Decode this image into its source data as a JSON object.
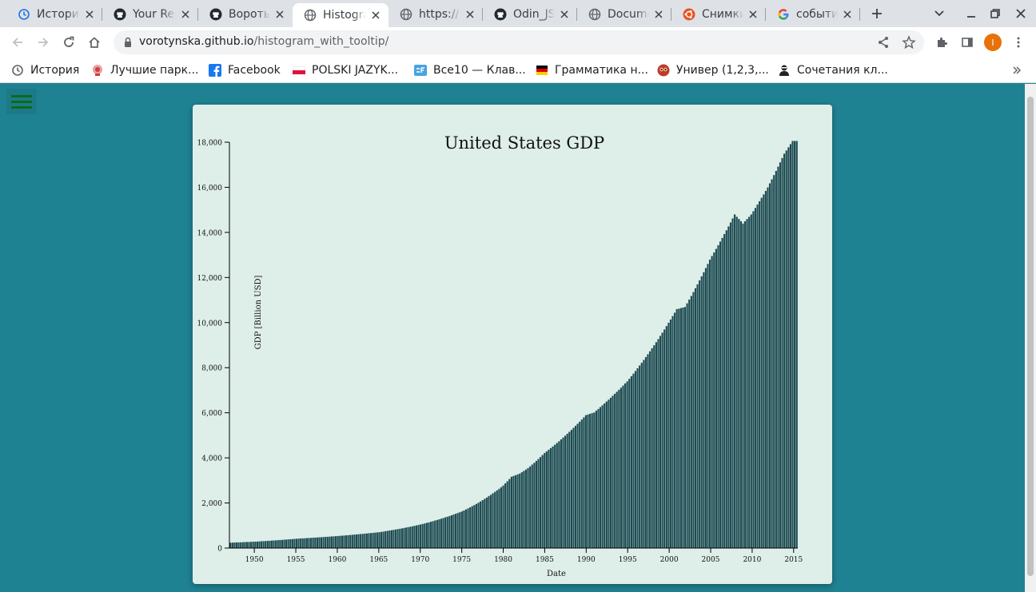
{
  "browser": {
    "tabs": [
      {
        "title": "История",
        "icon": "history-icon",
        "active": false
      },
      {
        "title": "Your Repositories",
        "icon": "github-icon",
        "active": false
      },
      {
        "title": "Воротынська",
        "icon": "github-icon",
        "active": false
      },
      {
        "title": "Histogram",
        "icon": "globe-icon",
        "active": true
      },
      {
        "title": "https://",
        "icon": "globe-icon",
        "active": false
      },
      {
        "title": "Odin_JS",
        "icon": "github-icon",
        "active": false
      },
      {
        "title": "Document",
        "icon": "globe-icon",
        "active": false
      },
      {
        "title": "Снимки",
        "icon": "ubuntu-icon",
        "active": false
      },
      {
        "title": "события",
        "icon": "google-icon",
        "active": false
      }
    ],
    "url": {
      "host": "vorotynska.github.io",
      "path": "/histogram_with_tooltip/"
    },
    "profile_initial": "I",
    "bookmarks": [
      {
        "label": "История",
        "icon": "history-icon"
      },
      {
        "label": "Лучшие парк...",
        "icon": "park-icon"
      },
      {
        "label": "Facebook",
        "icon": "facebook-icon"
      },
      {
        "label": "POLSKI JAZYK...",
        "icon": "poland-flag-icon"
      },
      {
        "label": "Все10 — Клав...",
        "icon": "keyboard-icon"
      },
      {
        "label": "Грамматика н...",
        "icon": "germany-flag-icon"
      },
      {
        "label": "Универ (1,2,3,...",
        "icon": "owl-icon"
      },
      {
        "label": "Сочетания кл...",
        "icon": "person-icon"
      }
    ],
    "colors": {
      "tabbar": "#dee1e6",
      "toolbar": "#ffffff",
      "profile": "#e8710a"
    }
  },
  "page": {
    "background": "#1f8292",
    "card_background": "#deeee8",
    "menu_color": "#0b6a1c"
  },
  "chart_data": {
    "type": "bar",
    "title": "United States GDP",
    "xlabel": "Date",
    "ylabel": "GDP [Billion USD]",
    "ylim": [
      0,
      18000
    ],
    "yticks": [
      0,
      2000,
      4000,
      6000,
      8000,
      10000,
      12000,
      14000,
      16000,
      18000
    ],
    "ytick_labels": [
      "0",
      "2,000",
      "4,000",
      "6,000",
      "8,000",
      "10,000",
      "12,000",
      "14,000",
      "16,000",
      "18,000"
    ],
    "xlim": [
      "1947-01-01",
      "2015-07-01"
    ],
    "xticks": [
      "1950",
      "1955",
      "1960",
      "1965",
      "1970",
      "1975",
      "1980",
      "1985",
      "1990",
      "1995",
      "2000",
      "2005",
      "2010",
      "2015"
    ],
    "grid": false,
    "bar_color": "#1d4b52",
    "bar_edge_color": "#deeee8",
    "frequency": "quarterly",
    "annual_values": [
      {
        "x": "1947",
        "y": 245
      },
      {
        "x": "1950",
        "y": 290
      },
      {
        "x": "1955",
        "y": 420
      },
      {
        "x": "1960",
        "y": 540
      },
      {
        "x": "1965",
        "y": 710
      },
      {
        "x": "1970",
        "y": 1050
      },
      {
        "x": "1975",
        "y": 1630
      },
      {
        "x": "1980",
        "y": 2780
      },
      {
        "x": "1981",
        "y": 3170
      },
      {
        "x": "1982",
        "y": 3310
      },
      {
        "x": "1983",
        "y": 3550
      },
      {
        "x": "1985",
        "y": 4220
      },
      {
        "x": "1990",
        "y": 5900
      },
      {
        "x": "1991",
        "y": 6020
      },
      {
        "x": "1995",
        "y": 7400
      },
      {
        "x": "2000",
        "y": 10000
      },
      {
        "x": "2001",
        "y": 10600
      },
      {
        "x": "2002",
        "y": 10700
      },
      {
        "x": "2005",
        "y": 12800
      },
      {
        "x": "2008",
        "y": 14800
      },
      {
        "x": "2009",
        "y": 14400
      },
      {
        "x": "2010",
        "y": 14800
      },
      {
        "x": "2012",
        "y": 16000
      },
      {
        "x": "2014",
        "y": 17500
      },
      {
        "x": "2015",
        "y": 18060
      }
    ]
  }
}
